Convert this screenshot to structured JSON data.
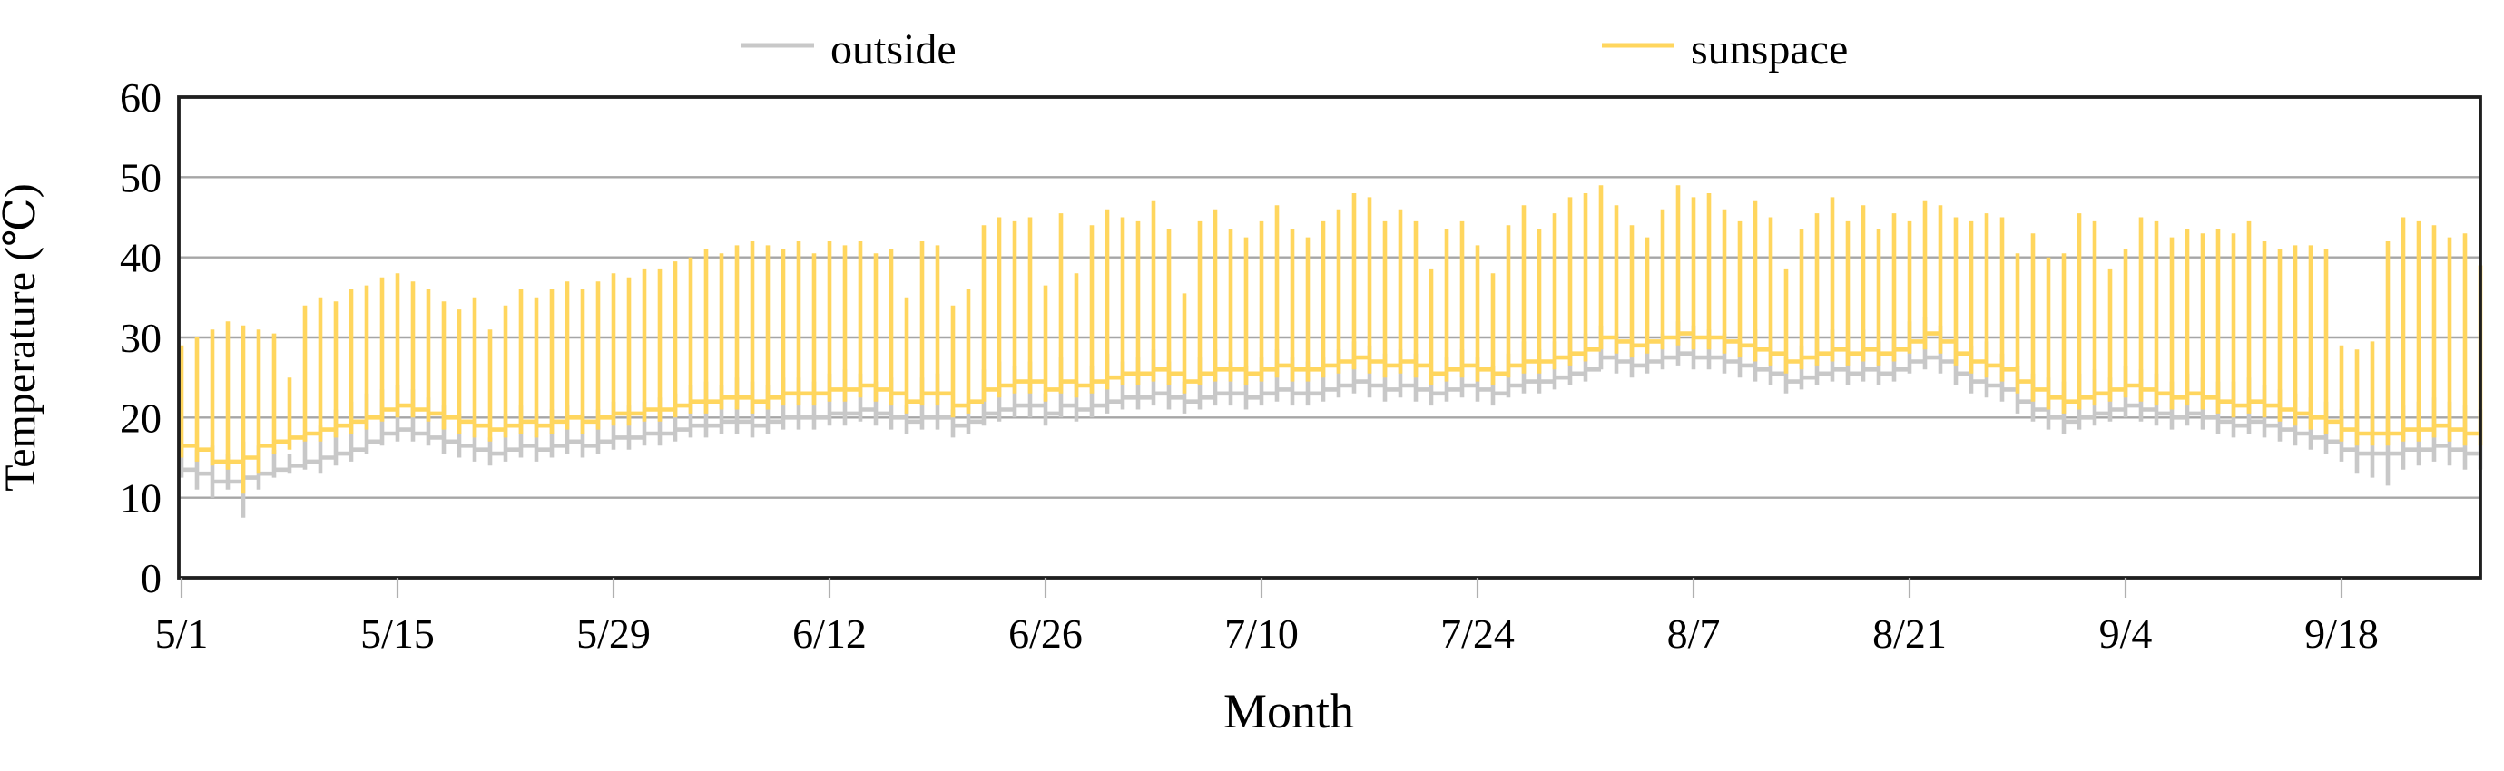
{
  "figure": {
    "legend": [
      {
        "label": "outside",
        "color": "#c8c8c8"
      },
      {
        "label": "sunspace",
        "color": "#ffd65e"
      }
    ],
    "y_axis": {
      "title": "Temperature (℃)",
      "ticks": [
        0,
        10,
        20,
        30,
        40,
        50,
        60
      ]
    },
    "x_axis": {
      "title": "Month",
      "tick_labels": [
        "5/1",
        "5/15",
        "5/29",
        "6/12",
        "6/26",
        "7/10",
        "7/24",
        "8/7",
        "8/21",
        "9/4",
        "9/18"
      ],
      "tick_days": [
        0,
        14,
        28,
        42,
        56,
        70,
        84,
        98,
        112,
        126,
        140
      ]
    }
  },
  "chart_data": {
    "type": "line",
    "description": "Daily temperature traces: vertical spike = daily min..max, horizontal segment = night plateau between days",
    "start_date": "5/1",
    "end_date": "9/27",
    "days": 150,
    "ylim": [
      0,
      60
    ],
    "grid": true,
    "grid_color": "#a6a6a6",
    "border_color": "#1f1f1f",
    "tick_color": "#b0b0b0",
    "legend_position": "top",
    "xlabel": "Month",
    "ylabel": "Temperature (℃)",
    "series": [
      {
        "name": "outside",
        "color": "#c8c8c8",
        "daily_max": [
          16.5,
          16,
          16.5,
          15.5,
          17,
          16.5,
          16,
          15.5,
          18,
          19,
          21,
          22,
          23,
          23.5,
          24,
          23.5,
          22.5,
          21.5,
          20.5,
          20,
          17.5,
          20.5,
          21.5,
          20.5,
          21,
          21.5,
          20.5,
          21,
          22,
          21.5,
          22,
          22.5,
          23,
          24,
          24.5,
          24,
          25,
          24.5,
          24,
          25,
          25,
          24.5,
          25.5,
          26,
          25.5,
          24.5,
          25,
          21.5,
          25,
          25.5,
          21,
          22,
          26,
          27,
          26.5,
          27,
          23,
          27.5,
          24.5,
          26.5,
          28,
          27,
          27.5,
          28.5,
          27,
          24.5,
          27.5,
          28.5,
          27,
          26.5,
          27.5,
          28.5,
          27.5,
          27,
          27.5,
          28.5,
          29.5,
          29,
          28,
          28.5,
          28,
          25.5,
          27.5,
          28.5,
          27.5,
          26.5,
          28,
          29.5,
          28.5,
          29.5,
          30.5,
          30.5,
          31.5,
          30.5,
          29.5,
          29.5,
          30.5,
          32,
          31.5,
          31,
          30.5,
          29.5,
          31,
          30,
          27.5,
          29,
          30,
          31,
          30,
          31,
          29.5,
          30.5,
          32,
          32.5,
          31.5,
          30,
          29,
          29.5,
          28,
          26.5,
          25.5,
          25,
          24.5,
          25.5,
          26,
          25,
          26.5,
          26,
          25.5,
          24.5,
          25.5,
          25,
          24.5,
          24.5,
          25,
          24,
          23.5,
          23,
          22.5,
          22,
          21,
          20.5,
          20.5,
          20.5,
          21.5,
          22,
          22.5,
          22,
          21.5,
          21
        ],
        "daily_min": [
          12.5,
          11,
          10,
          11,
          7.5,
          11,
          12.5,
          13,
          13.5,
          13,
          14,
          14.5,
          15.5,
          16.5,
          17,
          17,
          16.5,
          15.5,
          15,
          14.5,
          14,
          14.5,
          15,
          14.5,
          15,
          15.5,
          15,
          15.5,
          16,
          16,
          16.5,
          16.5,
          17,
          17.5,
          17.5,
          18,
          18,
          17.5,
          18,
          18.5,
          18.5,
          18.5,
          19,
          19,
          19.5,
          19,
          18.5,
          18,
          18.5,
          18.5,
          17.5,
          18,
          19,
          19.5,
          20,
          20,
          19,
          20,
          19.5,
          20,
          20.5,
          21,
          21,
          21.5,
          21,
          20.5,
          21,
          21.5,
          21.5,
          21,
          21.5,
          22,
          21.5,
          21.5,
          22,
          22.5,
          23,
          22.5,
          22,
          22.5,
          22,
          21.5,
          22,
          22.5,
          22,
          21.5,
          22.5,
          23,
          23,
          23.5,
          24,
          24.5,
          26,
          25.5,
          25,
          25.5,
          26,
          26.5,
          26,
          26,
          25.5,
          25,
          24.5,
          24,
          23,
          23.5,
          24,
          24.5,
          24,
          24.5,
          24,
          24.5,
          25.5,
          26,
          25.5,
          24,
          23,
          22.5,
          22,
          20.5,
          19.5,
          18.5,
          18,
          18.5,
          19,
          19.5,
          20,
          19.5,
          19,
          18.5,
          19,
          18.5,
          18,
          17.5,
          18,
          17.5,
          17,
          16.5,
          16,
          15.5,
          14.5,
          13,
          12.5,
          11.5,
          13.5,
          14,
          14.5,
          14,
          13.5,
          13.5
        ],
        "night_level": [
          13.5,
          13,
          12,
          12,
          12.5,
          13,
          13.5,
          14,
          14.5,
          15,
          15.5,
          16,
          17,
          18,
          18.5,
          18,
          17.5,
          17,
          16.5,
          16,
          15.5,
          16,
          16.5,
          16,
          16.5,
          17,
          16.5,
          17,
          17.5,
          17.5,
          18,
          18,
          18.5,
          19,
          19,
          19.5,
          19.5,
          19,
          19.5,
          20,
          20,
          20,
          20.5,
          20.5,
          21,
          20.5,
          20,
          19.5,
          20,
          20,
          19,
          19.5,
          20.5,
          21,
          21.5,
          21.5,
          20.5,
          21.5,
          21,
          21.5,
          22,
          22.5,
          22.5,
          23,
          22.5,
          22,
          22.5,
          23,
          23,
          22.5,
          23,
          23.5,
          23,
          23,
          23.5,
          24,
          24.5,
          24,
          23.5,
          24,
          23.5,
          23,
          23.5,
          24,
          23.5,
          23,
          24,
          24.5,
          24.5,
          25,
          25.5,
          26,
          27.5,
          27,
          26.5,
          27,
          27.5,
          28,
          27.5,
          27.5,
          27,
          26.5,
          26,
          25.5,
          24.5,
          25,
          25.5,
          26,
          25.5,
          26,
          25.5,
          26,
          27,
          27.5,
          27,
          25.5,
          24.5,
          24,
          23.5,
          22,
          21,
          20,
          19.5,
          20,
          20.5,
          21,
          21.5,
          21,
          20.5,
          20,
          20.5,
          20,
          19.5,
          19,
          19.5,
          19,
          18.5,
          18,
          17.5,
          17,
          16,
          15.5,
          15.5,
          15.5,
          16,
          16,
          16.5,
          16,
          15.5,
          15.5
        ]
      },
      {
        "name": "sunspace",
        "color": "#ffd65e",
        "daily_max": [
          29,
          30,
          31,
          32,
          31.5,
          31,
          30.5,
          25,
          34,
          35,
          34.5,
          36,
          36.5,
          37.5,
          38,
          37,
          36,
          34.5,
          33.5,
          35,
          31,
          34,
          36,
          35,
          36,
          37,
          36,
          37,
          38,
          37.5,
          38.5,
          38.5,
          39.5,
          40,
          41,
          40.5,
          41.5,
          42,
          41.5,
          41,
          42,
          40.5,
          42,
          41.5,
          42,
          40.5,
          41,
          35,
          42,
          41.5,
          34,
          36,
          44,
          45,
          44.5,
          45,
          36.5,
          45.5,
          38,
          44,
          46,
          45,
          44.5,
          47,
          43.5,
          35.5,
          44.5,
          46,
          43.5,
          42.5,
          44.5,
          46.5,
          43.5,
          42.5,
          44.5,
          46,
          48,
          47.5,
          44.5,
          46,
          44.5,
          38.5,
          43.5,
          44.5,
          41.5,
          38,
          44,
          46.5,
          43.5,
          45.5,
          47.5,
          48,
          49,
          46.5,
          44,
          42.5,
          46,
          49,
          47.5,
          48,
          46,
          44.5,
          47,
          45,
          38.5,
          43.5,
          45.5,
          47.5,
          44.5,
          46.5,
          43.5,
          45.5,
          44.5,
          47,
          46.5,
          45,
          44.5,
          45.5,
          45,
          40.5,
          43,
          40,
          40.5,
          45.5,
          44.5,
          38.5,
          41,
          45,
          44.5,
          42.5,
          43.5,
          43,
          43.5,
          43,
          44.5,
          42,
          41,
          41.5,
          41.5,
          41,
          29,
          28.5,
          29.5,
          42,
          45,
          44.5,
          44,
          42.5,
          43,
          39
        ],
        "daily_min": [
          15,
          14.5,
          14,
          13.5,
          10.5,
          13,
          15.5,
          16,
          17,
          17,
          17.5,
          18,
          18.5,
          19.5,
          20,
          20,
          19.5,
          18.5,
          18,
          17.5,
          17,
          17.5,
          18,
          17.5,
          18,
          18.5,
          18,
          18.5,
          19,
          19,
          19.5,
          19.5,
          20,
          20.5,
          20.5,
          21,
          21,
          20.5,
          21,
          21.5,
          21.5,
          21.5,
          22,
          22,
          22.5,
          22,
          21.5,
          20.5,
          21.5,
          21.5,
          20,
          20.5,
          22,
          22.5,
          23,
          23,
          22,
          23,
          22.5,
          23,
          23.5,
          24,
          24,
          24.5,
          24,
          23,
          24,
          24.5,
          24.5,
          24,
          24.5,
          25,
          24.5,
          24.5,
          25,
          25.5,
          26,
          25.5,
          25,
          25.5,
          25,
          24,
          24.5,
          25,
          24.5,
          24,
          25,
          25.5,
          25.5,
          26,
          26.5,
          27,
          28.5,
          28,
          27.5,
          28,
          28.5,
          29,
          28.5,
          28.5,
          28,
          27.5,
          27,
          26.5,
          25.5,
          26,
          26.5,
          27,
          26.5,
          27,
          26.5,
          27,
          28,
          28.5,
          28,
          26.5,
          25.5,
          25,
          24.5,
          23,
          22,
          21,
          20.5,
          21,
          21.5,
          22,
          22.5,
          22,
          21.5,
          21,
          21.5,
          21,
          20.5,
          20,
          20.5,
          20,
          19.5,
          19,
          18.5,
          18,
          17,
          16.5,
          16.5,
          16.5,
          17,
          17,
          17.5,
          17,
          16.5,
          16.5
        ],
        "night_level": [
          16.5,
          16,
          14.5,
          14.5,
          15,
          16.5,
          17,
          17.5,
          18,
          18.5,
          19,
          19.5,
          20,
          21,
          21.5,
          21,
          20.5,
          20,
          19.5,
          19,
          18.5,
          19,
          19.5,
          19,
          19.5,
          20,
          19.5,
          20,
          20.5,
          20.5,
          21,
          21,
          21.5,
          22,
          22,
          22.5,
          22.5,
          22,
          22.5,
          23,
          23,
          23,
          23.5,
          23.5,
          24,
          23.5,
          23,
          22,
          23,
          23,
          21.5,
          22,
          23.5,
          24,
          24.5,
          24.5,
          23.5,
          24.5,
          24,
          24.5,
          25,
          25.5,
          25.5,
          26,
          25.5,
          24.5,
          25.5,
          26,
          26,
          25.5,
          26,
          26.5,
          26,
          26,
          26.5,
          27,
          27.5,
          27,
          26.5,
          27,
          26.5,
          25.5,
          26,
          26.5,
          26,
          25.5,
          26.5,
          27,
          27,
          27.5,
          28,
          28.5,
          30,
          29.5,
          29,
          29.5,
          30,
          30.5,
          30,
          30,
          29.5,
          29,
          28.5,
          28,
          27,
          27.5,
          28,
          28.5,
          28,
          28.5,
          28,
          28.5,
          29.5,
          30.5,
          29.5,
          28,
          27,
          26.5,
          26,
          24.5,
          23.5,
          22.5,
          22,
          22.5,
          23,
          23.5,
          24,
          23.5,
          23,
          22.5,
          23,
          22.5,
          22,
          21.5,
          22,
          21.5,
          21,
          20.5,
          20,
          19.5,
          18.5,
          18,
          18,
          18,
          18.5,
          18.5,
          19,
          18.5,
          18,
          18
        ]
      }
    ]
  }
}
